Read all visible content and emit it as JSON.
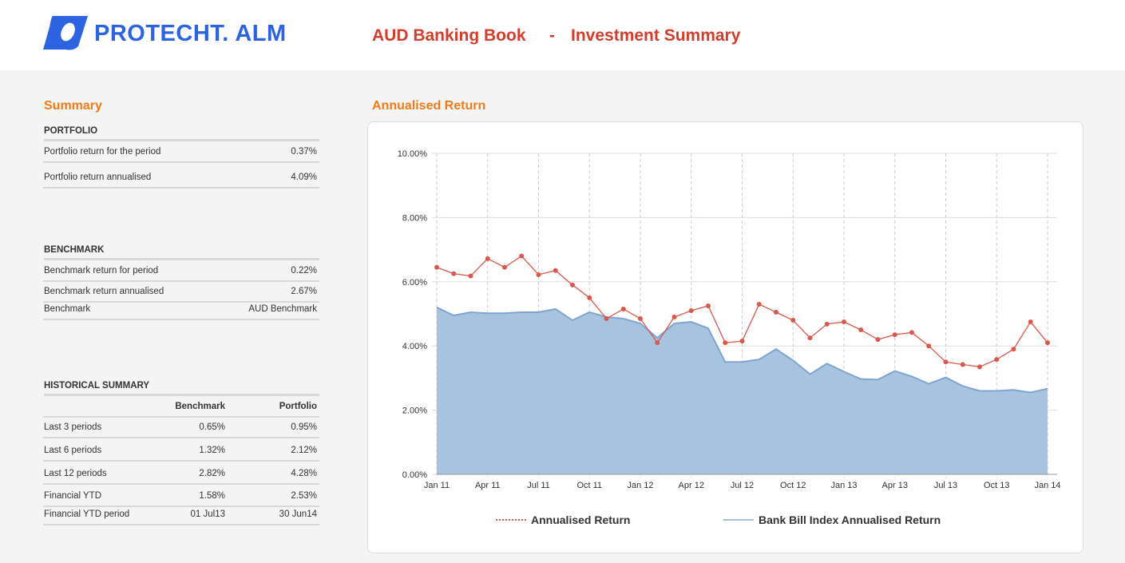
{
  "header": {
    "logo": "PROTECHT. ALM",
    "title_left": "AUD Banking Book",
    "separator": "-",
    "title_right": "Investment Summary"
  },
  "summary": {
    "title": "Summary",
    "portfolio": {
      "heading": "PORTFOLIO",
      "rows": [
        [
          "Portfolio return for the period",
          "0.37%"
        ],
        [
          "Portfolio return annualised",
          "4.09%"
        ]
      ]
    },
    "benchmark": {
      "heading": "BENCHMARK",
      "rows": [
        [
          "Benchmark return for period",
          "0.22%"
        ],
        [
          "Benchmark return annualised",
          "2.67%"
        ],
        [
          "Benchmark",
          "AUD Benchmark"
        ]
      ]
    },
    "historical": {
      "heading": "HISTORICAL SUMMARY",
      "columns": [
        "Benchmark",
        "Portfolio"
      ],
      "rows": [
        [
          "Last 3 periods",
          "0.65%",
          "0.95%"
        ],
        [
          "Last 6 periods",
          "1.32%",
          "2.12%"
        ],
        [
          "Last 12 periods",
          "2.82%",
          "4.28%"
        ],
        [
          "Financial YTD",
          "1.58%",
          "2.53%"
        ],
        [
          "Financial YTD period",
          "01 Jul13",
          "30 Jun14"
        ]
      ]
    }
  },
  "chart_data": {
    "type": "line",
    "title": "Annualised Return",
    "categories": [
      "Jan 11",
      null,
      null,
      "Apr 11",
      null,
      null,
      "Jul 11",
      null,
      null,
      "Oct 11",
      null,
      null,
      "Jan 12",
      null,
      null,
      "Apr 12",
      null,
      null,
      "Jul 12",
      null,
      null,
      "Oct 12",
      null,
      null,
      "Jan 13",
      null,
      null,
      "Apr 13",
      null,
      null,
      "Jul 13",
      null,
      null,
      "Oct 13",
      null,
      null,
      "Jan 14"
    ],
    "series": [
      {
        "name": "Annualised Return",
        "type": "line",
        "color": "#d9584c",
        "values": [
          6.45,
          6.25,
          6.18,
          6.72,
          6.45,
          6.8,
          6.22,
          6.35,
          5.9,
          5.5,
          4.85,
          5.15,
          4.85,
          4.1,
          4.9,
          5.1,
          5.25,
          4.1,
          4.15,
          5.3,
          5.05,
          4.8,
          4.25,
          4.68,
          4.75,
          4.5,
          4.2,
          4.35,
          4.42,
          4.0,
          3.5,
          3.42,
          3.35,
          3.58,
          3.9,
          4.75,
          4.1
        ]
      },
      {
        "name": "Bank Bill Index Annualised Return",
        "type": "area",
        "color": "#a3c0de",
        "values": [
          5.2,
          4.95,
          5.05,
          5.02,
          5.02,
          5.05,
          5.05,
          5.15,
          4.8,
          5.05,
          4.9,
          4.85,
          4.7,
          4.25,
          4.7,
          4.75,
          4.55,
          3.5,
          3.5,
          3.58,
          3.9,
          3.55,
          3.12,
          3.45,
          3.2,
          2.97,
          2.95,
          3.22,
          3.05,
          2.82,
          3.02,
          2.75,
          2.6,
          2.6,
          2.63,
          2.55,
          2.67
        ]
      }
    ],
    "ylim": [
      0,
      10
    ],
    "yticks": [
      {
        "value": 0,
        "label": "0.00%"
      },
      {
        "value": 2,
        "label": "2.00%"
      },
      {
        "value": 4,
        "label": "4.00%"
      },
      {
        "value": 6,
        "label": "6.00%"
      },
      {
        "value": 8,
        "label": "8.00%"
      },
      {
        "value": 10,
        "label": "10.00%"
      }
    ],
    "grid": true
  }
}
